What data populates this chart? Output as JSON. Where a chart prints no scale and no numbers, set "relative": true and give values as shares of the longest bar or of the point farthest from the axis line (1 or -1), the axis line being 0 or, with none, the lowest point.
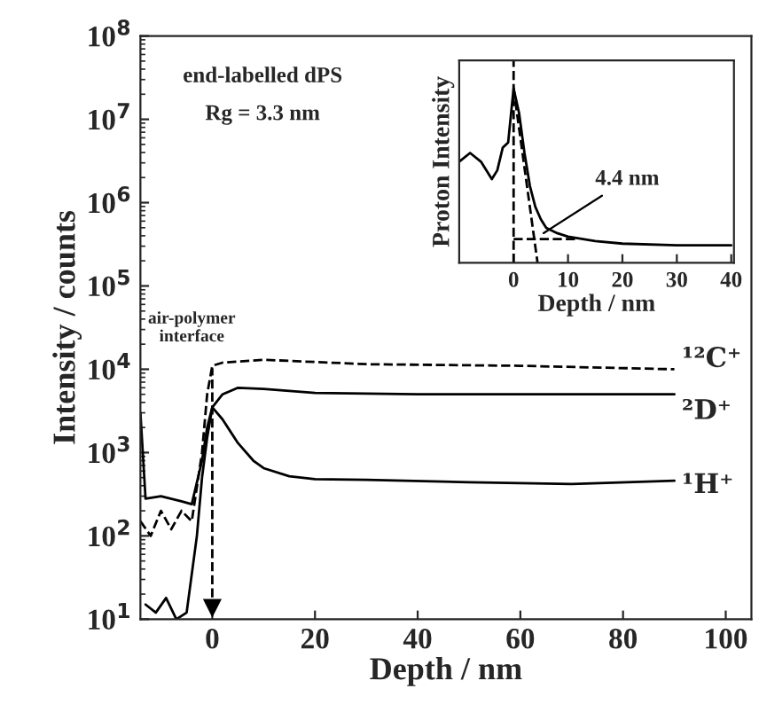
{
  "chart_data": [
    {
      "type": "line",
      "xlabel": "Depth / nm",
      "ylabel": "Intensity / counts",
      "log": "y",
      "xlim": [
        -14,
        105
      ],
      "xticks": [
        0,
        20,
        40,
        60,
        80,
        100
      ],
      "ylim": [
        10,
        100000000
      ],
      "yticks": [
        {
          "value": 10,
          "label": "10$^{1}$"
        },
        {
          "value": 100,
          "label": "10$^{2}$"
        },
        {
          "value": 1000,
          "label": "10$^{3}$"
        },
        {
          "value": 10000,
          "label": "10$^{4}$"
        },
        {
          "value": 100000,
          "label": "10$^{5}$"
        },
        {
          "value": 1000000,
          "label": "10$^{6}$"
        },
        {
          "value": 10000000,
          "label": "10$^{7}$"
        },
        {
          "value": 100000000,
          "label": "10$^{8}$"
        }
      ],
      "series": [
        {
          "name": "¹²C⁺",
          "color": "#000000",
          "line_style": "dashed",
          "x": [
            -14,
            -12,
            -10,
            -8,
            -6,
            -4,
            -2,
            -1,
            0,
            2,
            10,
            30,
            60,
            90
          ],
          "values": [
            150,
            100,
            200,
            120,
            200,
            150,
            1000,
            5000,
            11000,
            12000,
            13000,
            11500,
            11000,
            10000
          ]
        },
        {
          "name": "²D⁺",
          "color": "#000000",
          "line_style": "solid",
          "x": [
            -13,
            -11,
            -9,
            -7,
            -5,
            -3,
            -2,
            -1,
            0,
            2,
            5,
            10,
            20,
            40,
            90
          ],
          "values": [
            15,
            12,
            18,
            10,
            12,
            100,
            500,
            1500,
            3500,
            5000,
            6000,
            5800,
            5200,
            5000,
            5000
          ]
        },
        {
          "name": "¹H⁺",
          "color": "#000000",
          "line_style": "solid",
          "x": [
            -14,
            -13,
            -10,
            -6,
            -4,
            -2,
            -1,
            0,
            2,
            5,
            8,
            10,
            15,
            20,
            30,
            50,
            70,
            90
          ],
          "values": [
            3000,
            280,
            300,
            260,
            240,
            800,
            2000,
            3500,
            2500,
            1300,
            800,
            650,
            520,
            480,
            470,
            440,
            420,
            460
          ]
        }
      ],
      "ref_lines": [
        {
          "axis": "x",
          "value": 0,
          "color": "#000000",
          "line_style": "dashed",
          "label": "air-polymer\ninterface"
        }
      ],
      "annotations": [
        "end-labelled dPS",
        "Rg = 3.3 nm"
      ]
    },
    {
      "type": "line",
      "xlabel": "Depth / nm",
      "ylabel": "Proton Intensity",
      "relative": true,
      "xlim": [
        -10,
        40.5
      ],
      "xticks": [
        0,
        10,
        20,
        30,
        40
      ],
      "series": [
        {
          "color": "#000000",
          "line_style": "solid",
          "x": [
            -10,
            -8,
            -6,
            -4,
            -3,
            -2,
            -1,
            0,
            1,
            2,
            3,
            4,
            5,
            6,
            8,
            10,
            15,
            20,
            30,
            40
          ],
          "values": [
            0.58,
            0.63,
            0.58,
            0.48,
            0.53,
            0.66,
            0.69,
            1.0,
            0.86,
            0.63,
            0.44,
            0.32,
            0.25,
            0.2,
            0.17,
            0.15,
            0.125,
            0.11,
            0.1,
            0.1
          ]
        },
        {
          "color": "#000000",
          "line_style": "dashed",
          "x": [
            0,
            4.4
          ],
          "values": [
            1.0,
            0.0
          ]
        },
        {
          "color": "#000000",
          "line_style": "dashed",
          "x": [
            0,
            12
          ],
          "values": [
            0.136,
            0.136
          ]
        }
      ],
      "ref_lines": [
        {
          "axis": "x",
          "value": 0,
          "color": "#000000",
          "line_style": "dashed"
        }
      ],
      "annotations": [
        {
          "text": "4.4 nm",
          "x": 5.5,
          "y": 0.17
        }
      ]
    }
  ]
}
